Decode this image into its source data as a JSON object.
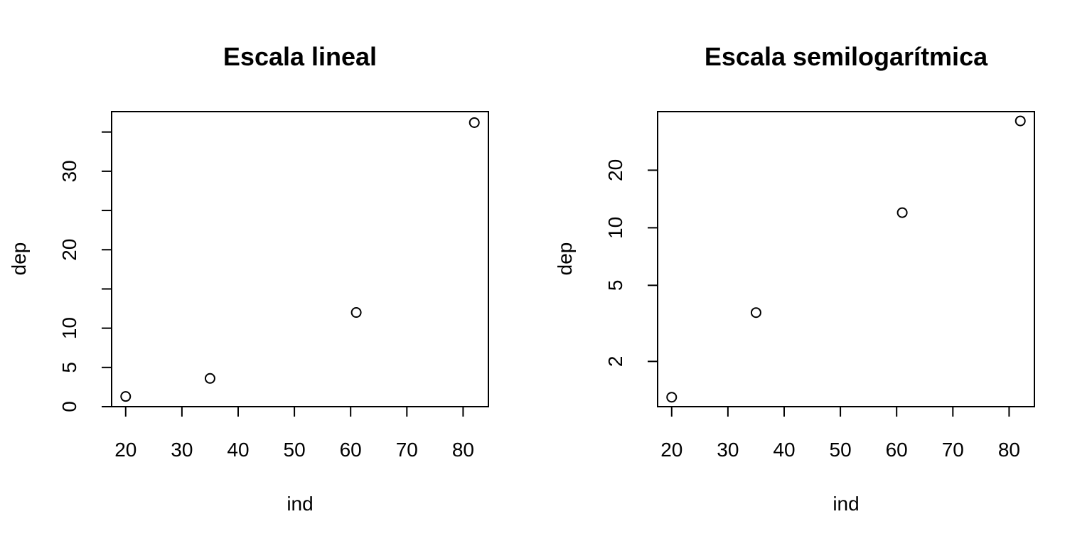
{
  "colors": {
    "background": "#ffffff",
    "ink": "#000000"
  },
  "chart_data": [
    {
      "type": "scatter",
      "title": "Escala lineal",
      "xlabel": "ind",
      "ylabel": "dep",
      "y_scale": "linear",
      "grid": false,
      "x_ticks": [
        20,
        30,
        40,
        50,
        60,
        70,
        80
      ],
      "x_tick_labels": [
        "20",
        "30",
        "40",
        "50",
        "60",
        "70",
        "80"
      ],
      "y_ticks": [
        0,
        5,
        10,
        15,
        20,
        25,
        30,
        35
      ],
      "y_tick_labels": [
        "0",
        "5",
        "10",
        "",
        "20",
        "",
        "30",
        ""
      ],
      "xlim": [
        17.5,
        84.5
      ],
      "ylim": [
        0,
        37.6
      ],
      "x": [
        20,
        35,
        61,
        82
      ],
      "y": [
        1.3,
        3.6,
        12.0,
        36.2
      ],
      "marker": "open-circle"
    },
    {
      "type": "scatter",
      "title": "Escala semilogarítmica",
      "xlabel": "ind",
      "ylabel": "dep",
      "y_scale": "log",
      "grid": false,
      "x_ticks": [
        20,
        30,
        40,
        50,
        60,
        70,
        80
      ],
      "x_tick_labels": [
        "20",
        "30",
        "40",
        "50",
        "60",
        "70",
        "80"
      ],
      "y_ticks": [
        2,
        5,
        10,
        20
      ],
      "y_tick_labels": [
        "2",
        "5",
        "10",
        "20"
      ],
      "xlim": [
        17.5,
        84.5
      ],
      "ylim": [
        1.16,
        40.5
      ],
      "x": [
        20,
        35,
        61,
        82
      ],
      "y": [
        1.3,
        3.6,
        12.0,
        36.2
      ],
      "marker": "open-circle"
    }
  ]
}
